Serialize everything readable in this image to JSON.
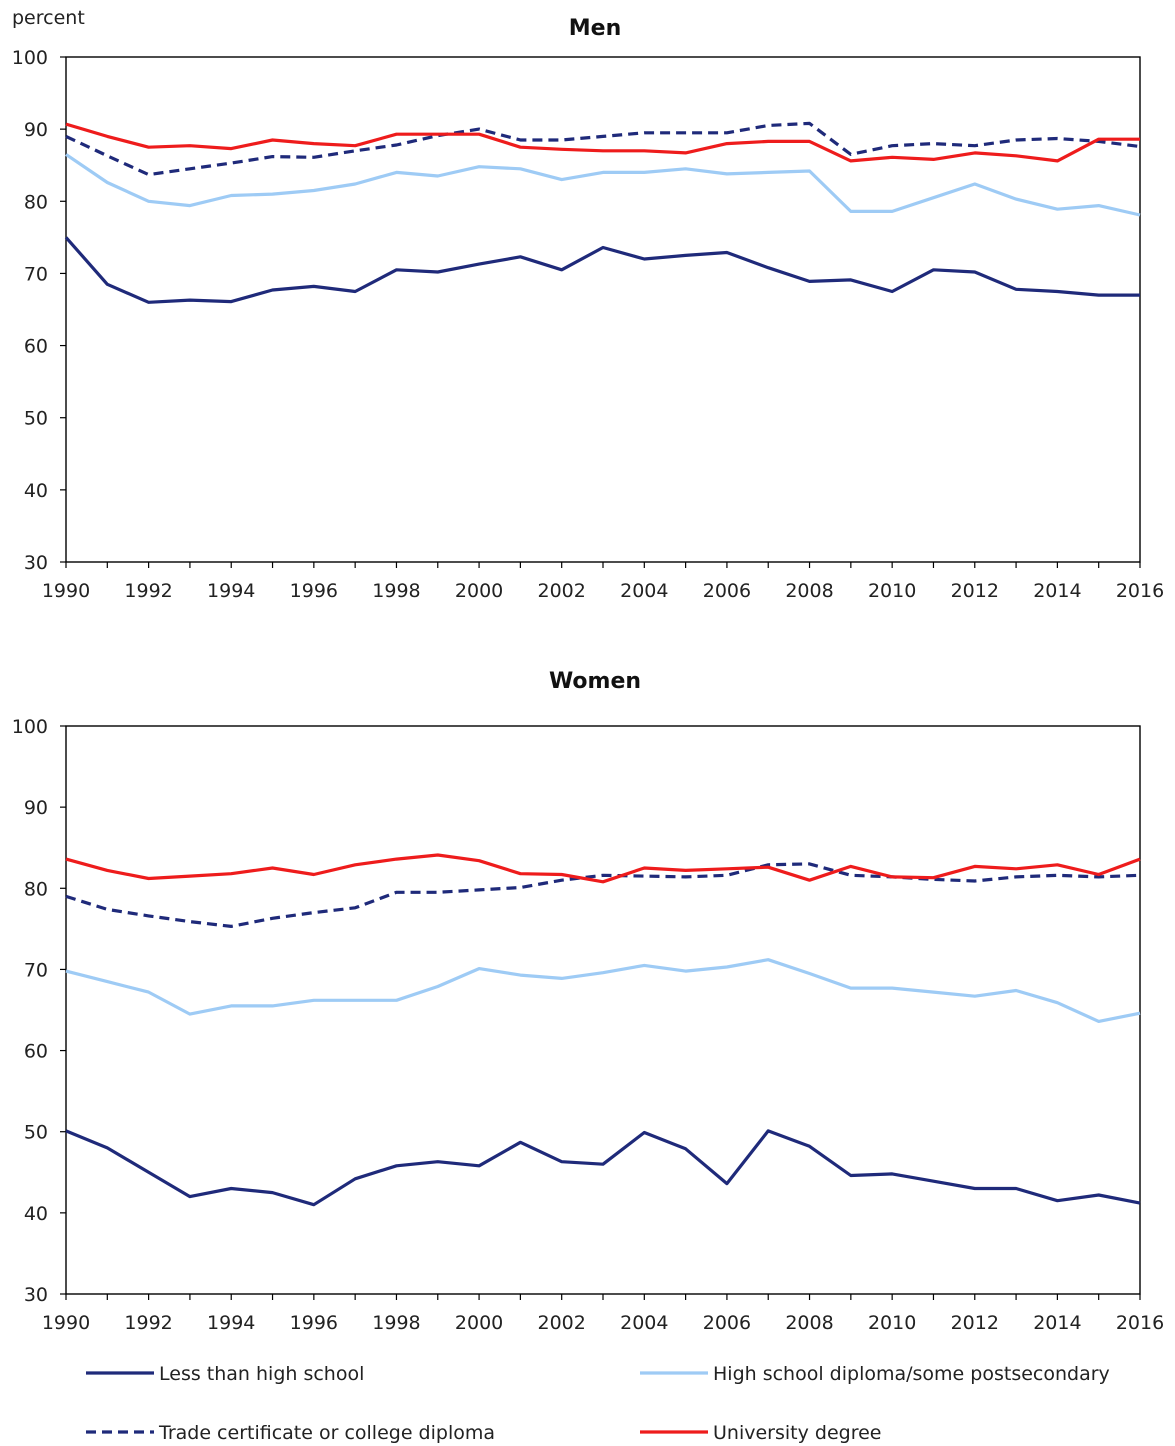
{
  "chart_data": [
    {
      "type": "line",
      "title": "Men",
      "ylabel": "percent",
      "xlabel": "",
      "ylim": [
        30,
        100
      ],
      "yticks": [
        30,
        40,
        50,
        60,
        70,
        80,
        90,
        100
      ],
      "xticks": [
        1990,
        1992,
        1994,
        1996,
        1998,
        2000,
        2002,
        2004,
        2006,
        2008,
        2010,
        2012,
        2014,
        2016
      ],
      "x": [
        1990,
        1991,
        1992,
        1993,
        1994,
        1995,
        1996,
        1997,
        1998,
        1999,
        2000,
        2001,
        2002,
        2003,
        2004,
        2005,
        2006,
        2007,
        2008,
        2009,
        2010,
        2011,
        2012,
        2013,
        2014,
        2015,
        2016
      ],
      "series": [
        {
          "name": "Less than high school",
          "color": "#1f2a7a",
          "dash": false,
          "values": [
            75.0,
            68.5,
            66.0,
            66.3,
            66.1,
            67.7,
            68.2,
            67.5,
            70.5,
            70.2,
            71.3,
            72.3,
            70.5,
            73.6,
            72.0,
            72.5,
            72.9,
            70.8,
            68.9,
            69.1,
            67.5,
            70.5,
            70.2,
            67.8,
            67.5,
            67.0,
            67.0
          ]
        },
        {
          "name": "High school diploma/some postsecondary",
          "color": "#9ecbf5",
          "dash": false,
          "values": [
            86.5,
            82.6,
            80.0,
            79.4,
            80.8,
            81.0,
            81.5,
            82.4,
            84.0,
            83.5,
            84.8,
            84.5,
            83.0,
            84.0,
            84.0,
            84.5,
            83.8,
            84.0,
            84.2,
            78.6,
            78.6,
            80.5,
            82.4,
            80.3,
            78.9,
            79.4,
            78.1
          ]
        },
        {
          "name": "Trade certificate or college diploma",
          "color": "#1f2a7a",
          "dash": true,
          "values": [
            89.0,
            86.3,
            83.7,
            84.5,
            85.3,
            86.2,
            86.1,
            87.0,
            87.8,
            89.1,
            90.0,
            88.5,
            88.5,
            89.0,
            89.5,
            89.5,
            89.5,
            90.5,
            90.8,
            86.5,
            87.7,
            88.0,
            87.7,
            88.5,
            88.7,
            88.3,
            87.6
          ]
        },
        {
          "name": "University degree",
          "color": "#ee1c1c",
          "dash": false,
          "values": [
            90.7,
            89.0,
            87.5,
            87.7,
            87.3,
            88.5,
            88.0,
            87.7,
            89.3,
            89.3,
            89.3,
            87.5,
            87.2,
            87.0,
            87.0,
            86.7,
            88.0,
            88.3,
            88.3,
            85.6,
            86.1,
            85.8,
            86.7,
            86.3,
            85.6,
            88.6,
            88.6
          ]
        }
      ]
    },
    {
      "type": "line",
      "title": "Women",
      "ylabel": "",
      "xlabel": "",
      "ylim": [
        30,
        100
      ],
      "yticks": [
        30,
        40,
        50,
        60,
        70,
        80,
        90,
        100
      ],
      "xticks": [
        1990,
        1992,
        1994,
        1996,
        1998,
        2000,
        2002,
        2004,
        2006,
        2008,
        2010,
        2012,
        2014,
        2016
      ],
      "x": [
        1990,
        1991,
        1992,
        1993,
        1994,
        1995,
        1996,
        1997,
        1998,
        1999,
        2000,
        2001,
        2002,
        2003,
        2004,
        2005,
        2006,
        2007,
        2008,
        2009,
        2010,
        2011,
        2012,
        2013,
        2014,
        2015,
        2016
      ],
      "series": [
        {
          "name": "Less than high school",
          "color": "#1f2a7a",
          "dash": false,
          "values": [
            50.1,
            48.0,
            45.0,
            42.0,
            43.0,
            42.5,
            41.0,
            44.2,
            45.8,
            46.3,
            45.8,
            48.7,
            46.3,
            46.0,
            49.9,
            47.9,
            43.6,
            50.1,
            48.2,
            44.6,
            44.8,
            43.9,
            43.0,
            43.0,
            41.5,
            42.2,
            41.2
          ]
        },
        {
          "name": "High school diploma/some postsecondary",
          "color": "#9ecbf5",
          "dash": false,
          "values": [
            69.8,
            68.5,
            67.2,
            64.5,
            65.5,
            65.5,
            66.2,
            66.2,
            66.2,
            67.9,
            70.1,
            69.3,
            68.9,
            69.6,
            70.5,
            69.8,
            70.3,
            71.2,
            69.5,
            67.7,
            67.7,
            67.2,
            66.7,
            67.4,
            65.9,
            63.6,
            64.6
          ]
        },
        {
          "name": "Trade certificate or college diploma",
          "color": "#1f2a7a",
          "dash": true,
          "values": [
            79.0,
            77.4,
            76.6,
            75.9,
            75.3,
            76.3,
            77.0,
            77.6,
            79.5,
            79.5,
            79.8,
            80.1,
            81.0,
            81.6,
            81.5,
            81.4,
            81.6,
            82.9,
            83.0,
            81.6,
            81.4,
            81.1,
            80.9,
            81.4,
            81.6,
            81.4,
            81.6
          ]
        },
        {
          "name": "University degree",
          "color": "#ee1c1c",
          "dash": false,
          "values": [
            83.6,
            82.2,
            81.2,
            81.5,
            81.8,
            82.5,
            81.7,
            82.9,
            83.6,
            84.1,
            83.4,
            81.8,
            81.7,
            80.8,
            82.5,
            82.2,
            82.4,
            82.6,
            81.0,
            82.7,
            81.4,
            81.3,
            82.7,
            82.4,
            82.9,
            81.7,
            83.6
          ]
        }
      ]
    }
  ],
  "legend": [
    {
      "label": "Less than high school",
      "color": "#1f2a7a",
      "dash": false
    },
    {
      "label": "High school diploma/some postsecondary",
      "color": "#9ecbf5",
      "dash": false
    },
    {
      "label": "Trade certificate or college diploma",
      "color": "#1f2a7a",
      "dash": true
    },
    {
      "label": "University degree",
      "color": "#ee1c1c",
      "dash": false
    }
  ]
}
